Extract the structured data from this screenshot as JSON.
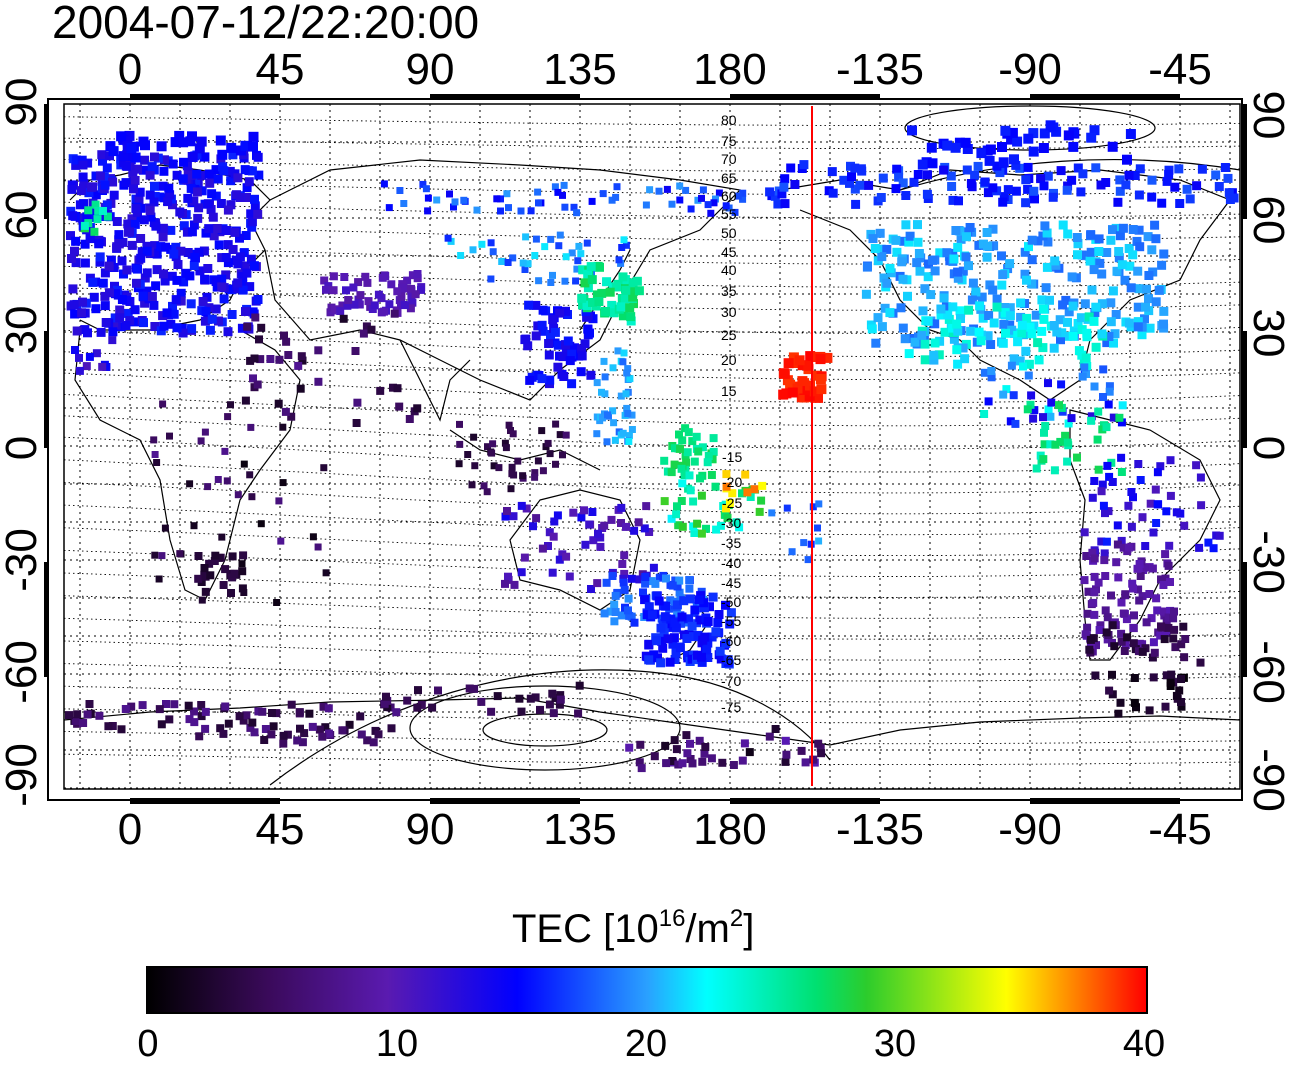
{
  "timestamp": "2004-07-12/22:20:00",
  "map": {
    "lon_ticks_top": [
      "0",
      "45",
      "90",
      "135",
      "180",
      "-135",
      "-90",
      "-45"
    ],
    "lon_ticks_bottom": [
      "0",
      "45",
      "90",
      "135",
      "180",
      "-135",
      "-90",
      "-45"
    ],
    "lat_ticks_left": [
      "90",
      "60",
      "30",
      "0",
      "-30",
      "-60",
      "-90"
    ],
    "lat_ticks_right": [
      "90",
      "60",
      "30",
      "0",
      "-30",
      "-60",
      "-90"
    ],
    "contour_labels": [
      "80",
      "75",
      "70",
      "65",
      "60",
      "55",
      "50",
      "45",
      "40",
      "35",
      "30",
      "25",
      "20",
      "15",
      "-15",
      "-20",
      "-25",
      "-30",
      "-35",
      "-40",
      "-45",
      "-50",
      "-55",
      "-60",
      "-65",
      "-70",
      "-75"
    ],
    "terminator_line_color": "#ff0000",
    "grid": "dotted",
    "coastlines": true
  },
  "colorbar": {
    "title_main": "TEC  [10",
    "title_exp1": "16",
    "title_mid": "/m",
    "title_exp2": "2",
    "title_end": "]",
    "min": 0,
    "max": 40,
    "tick_labels": [
      "0",
      "10",
      "20",
      "30",
      "40"
    ],
    "colormap": "jet-like (black-purple-blue-cyan-green-yellow-red)"
  }
}
